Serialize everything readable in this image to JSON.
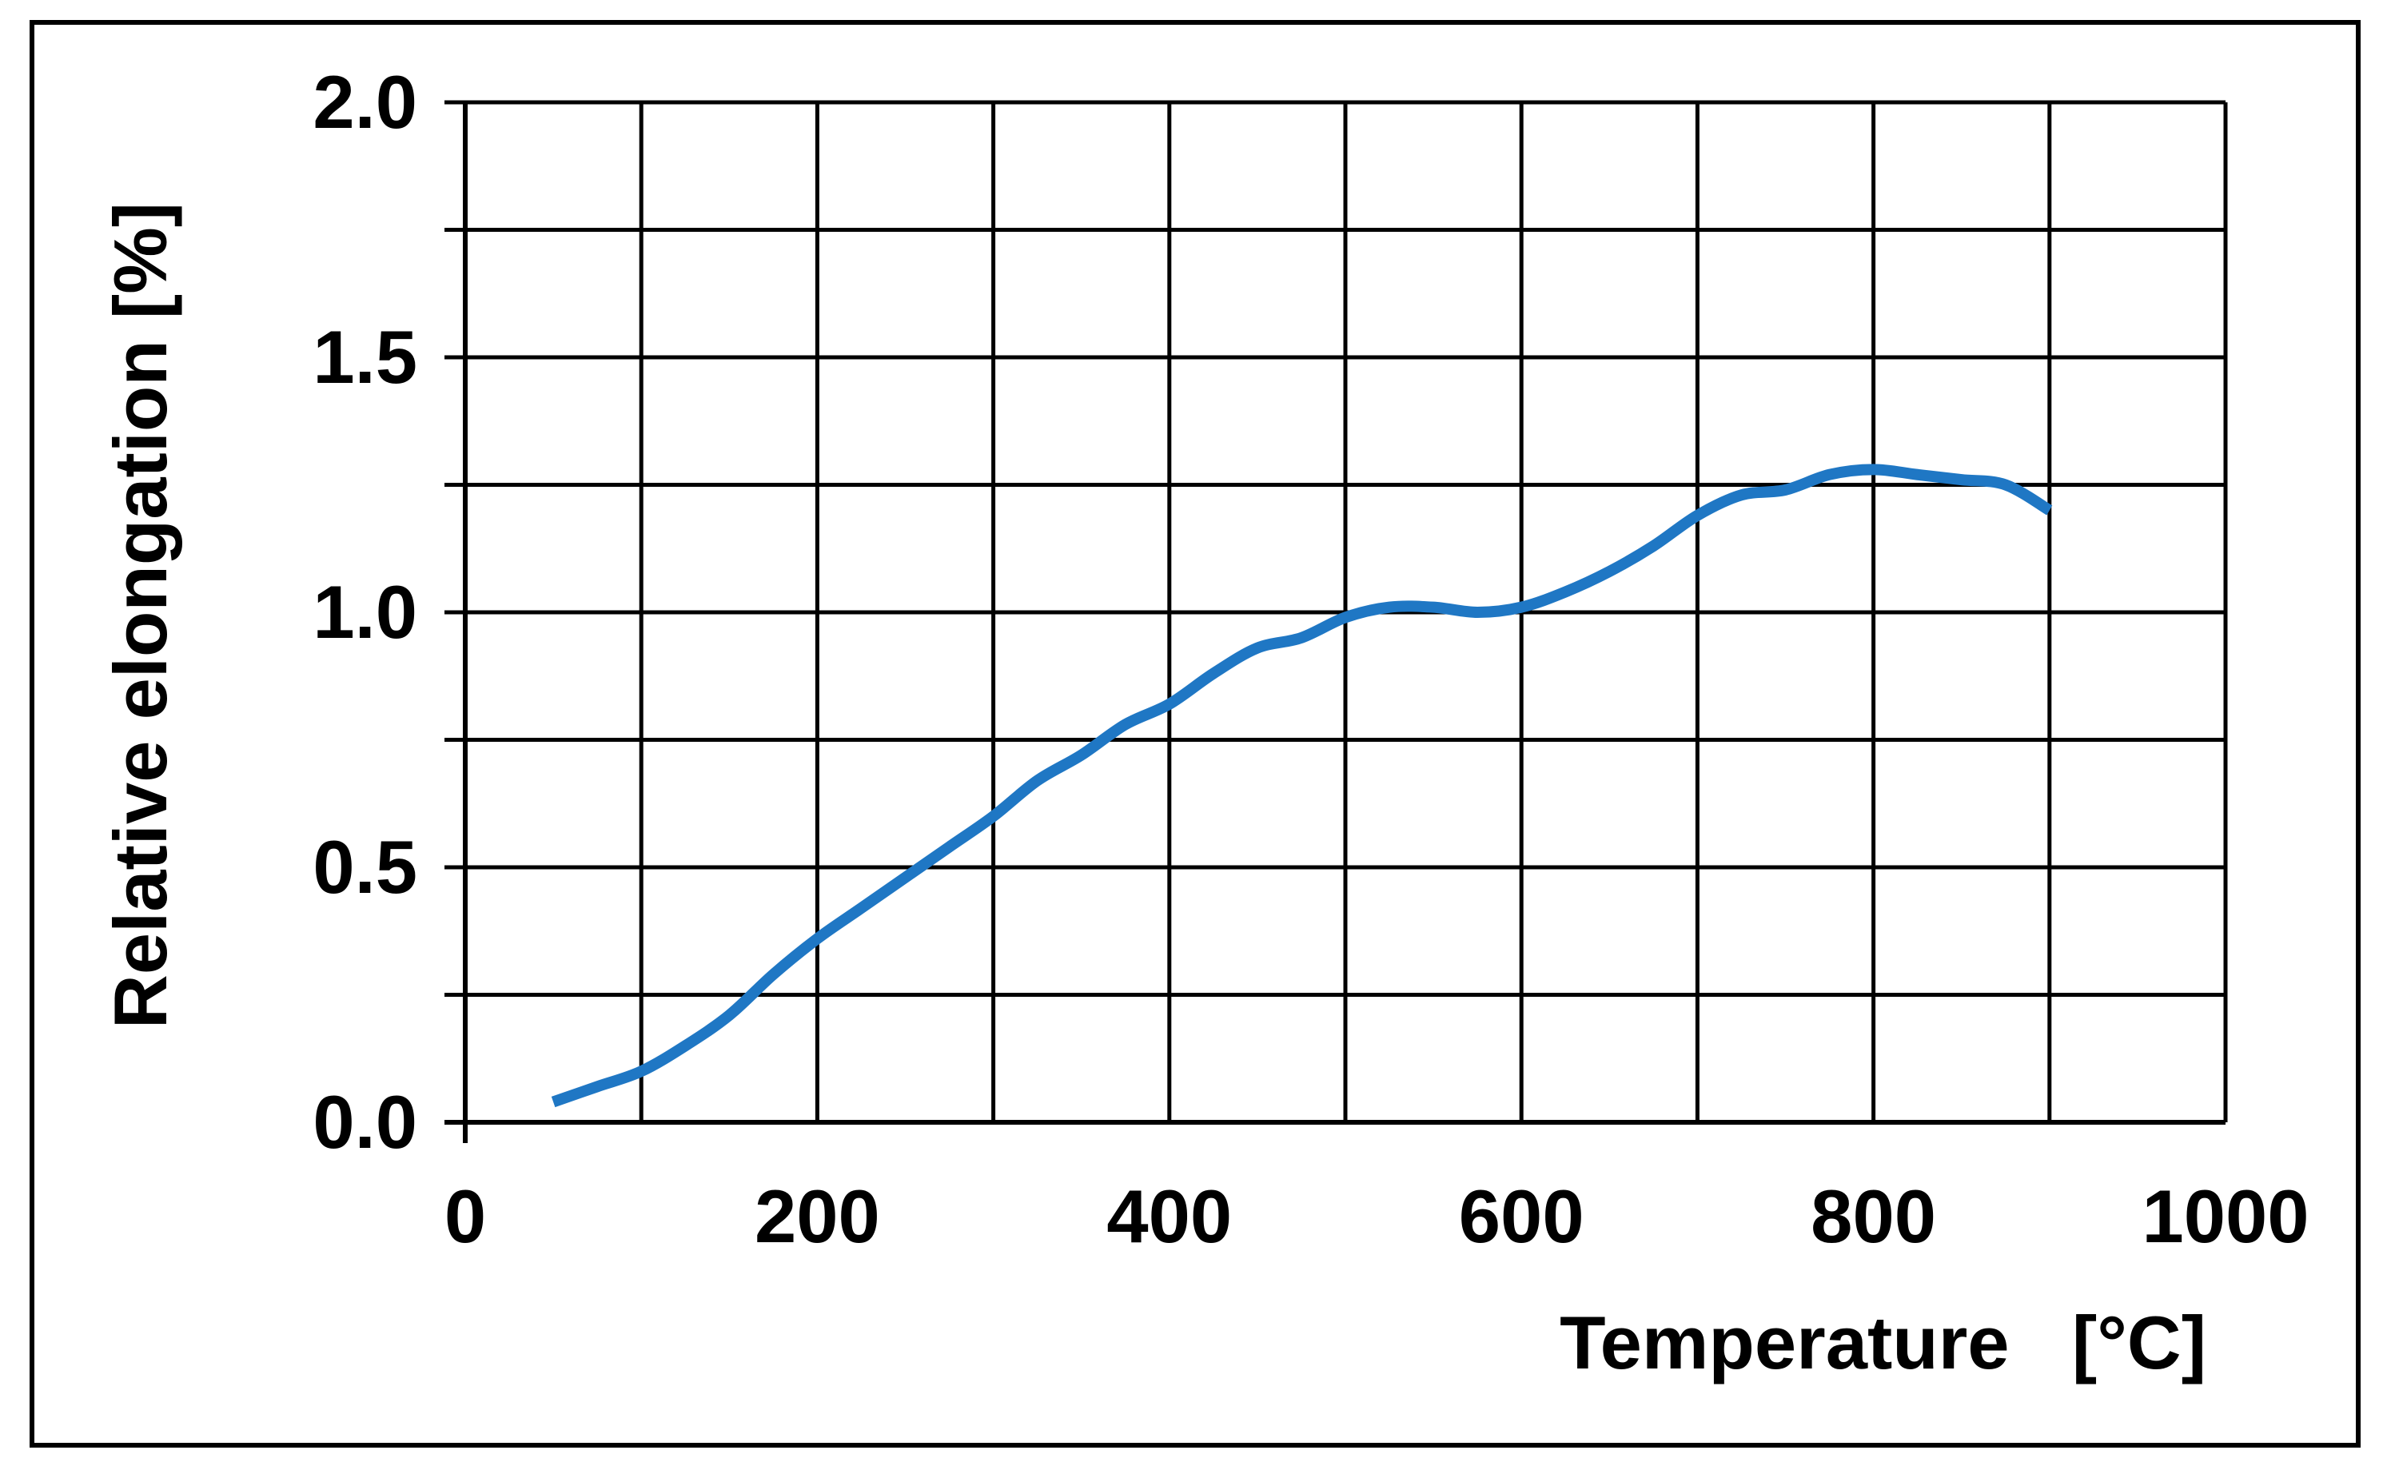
{
  "chart_data": {
    "type": "line",
    "title": "",
    "xlabel": "Temperature   [°C]",
    "ylabel": "Relative elongation [%]",
    "xlim": [
      0,
      1000
    ],
    "ylim": [
      0,
      2.0
    ],
    "x_ticks": [
      0,
      200,
      400,
      600,
      800,
      1000
    ],
    "x_tick_labels": [
      "0",
      "200",
      "400",
      "600",
      "800",
      "1000"
    ],
    "y_ticks": [
      0,
      0.5,
      1.0,
      1.5,
      2.0
    ],
    "y_tick_labels": [
      "0.0",
      "0.5",
      "1.0",
      "1.5",
      "2.0"
    ],
    "x_grid": [
      0,
      100,
      200,
      300,
      400,
      500,
      600,
      700,
      800,
      900,
      1000
    ],
    "y_grid": [
      0,
      0.25,
      0.5,
      0.75,
      1.0,
      1.25,
      1.5,
      1.75,
      2.0
    ],
    "grid": true,
    "legend": "none",
    "series": [
      {
        "color": "#1f77c4",
        "x": [
          50,
          75,
          100,
          125,
          150,
          175,
          200,
          225,
          250,
          275,
          300,
          325,
          350,
          375,
          400,
          425,
          450,
          475,
          500,
          525,
          550,
          575,
          600,
          625,
          650,
          675,
          700,
          725,
          750,
          775,
          800,
          825,
          850,
          875,
          900
        ],
        "y": [
          0.04,
          0.07,
          0.1,
          0.15,
          0.21,
          0.29,
          0.36,
          0.42,
          0.48,
          0.54,
          0.6,
          0.67,
          0.72,
          0.78,
          0.82,
          0.88,
          0.93,
          0.95,
          0.99,
          1.01,
          1.01,
          1.0,
          1.01,
          1.04,
          1.08,
          1.13,
          1.19,
          1.23,
          1.24,
          1.27,
          1.28,
          1.27,
          1.26,
          1.25,
          1.2
        ]
      }
    ]
  }
}
